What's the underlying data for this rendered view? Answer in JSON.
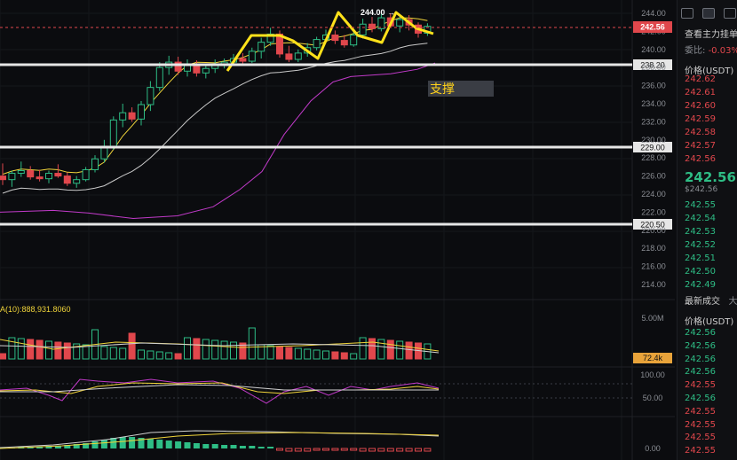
{
  "price_axis": {
    "ticks": [
      "244.00",
      "242.00",
      "240.00",
      "238.00",
      "236.00",
      "234.00",
      "232.00",
      "230.00",
      "228.00",
      "226.00",
      "224.00",
      "222.00",
      "220.00",
      "218.00",
      "216.00",
      "214.00"
    ],
    "current_price_tag": "242.56",
    "levels": [
      "238.20",
      "229.00",
      "220.50"
    ]
  },
  "annotations": {
    "peak_label": "244.00 →",
    "support_label": "支撑"
  },
  "volume": {
    "ma_label": "A(10):888,931.8060",
    "axis_max": "5.00M",
    "current_tag": "72.4k"
  },
  "oscillator": {
    "ticks": [
      "100.00",
      "50.00"
    ]
  },
  "macd": {
    "ticks": [
      "0.00"
    ]
  },
  "colors": {
    "up": "#2ebd85",
    "down": "#e0474c",
    "ma_fast": "#f0d43a",
    "ma_slow": "#c9c9c9",
    "ma_purple": "#c13ac9",
    "pattern": "#ffe11a"
  },
  "panel": {
    "title": "查看主力挂单",
    "ratio_label": "委比:",
    "ratio_value": "-0.03%",
    "price_header": "价格(USDT)",
    "asks": [
      "242.62",
      "242.61",
      "242.60",
      "242.59",
      "242.58",
      "242.57",
      "242.56"
    ],
    "last_price": "242.56",
    "last_price_usd": "$242.56",
    "bids": [
      "242.55",
      "242.54",
      "242.53",
      "242.52",
      "242.51",
      "242.50",
      "242.49"
    ],
    "trades_title": "最新成交",
    "trades_tab2": "大",
    "trades_header": "价格(USDT)",
    "trades": [
      {
        "p": "242.56",
        "side": "up"
      },
      {
        "p": "242.56",
        "side": "up"
      },
      {
        "p": "242.56",
        "side": "up"
      },
      {
        "p": "242.56",
        "side": "up"
      },
      {
        "p": "242.55",
        "side": "down"
      },
      {
        "p": "242.56",
        "side": "up"
      },
      {
        "p": "242.55",
        "side": "down"
      },
      {
        "p": "242.55",
        "side": "down"
      },
      {
        "p": "242.55",
        "side": "down"
      },
      {
        "p": "242.55",
        "side": "down"
      }
    ]
  },
  "chart_data": {
    "type": "candlestick",
    "ohlc": [
      [
        226.0,
        227.4,
        225.0,
        225.6
      ],
      [
        225.6,
        226.6,
        224.8,
        226.3
      ],
      [
        226.3,
        227.6,
        225.9,
        226.6
      ],
      [
        226.6,
        227.1,
        225.6,
        225.9
      ],
      [
        225.9,
        226.7,
        225.4,
        225.7
      ],
      [
        225.7,
        226.6,
        225.2,
        226.3
      ],
      [
        226.3,
        227.3,
        225.8,
        226.0
      ],
      [
        226.0,
        226.4,
        224.9,
        225.2
      ],
      [
        225.2,
        226.0,
        224.7,
        225.6
      ],
      [
        225.6,
        227.0,
        225.4,
        226.7
      ],
      [
        226.7,
        228.3,
        226.4,
        227.9
      ],
      [
        227.9,
        230.0,
        227.5,
        229.3
      ],
      [
        229.3,
        232.6,
        228.9,
        232.2
      ],
      [
        232.2,
        234.0,
        231.4,
        233.0
      ],
      [
        233.0,
        233.6,
        232.0,
        232.3
      ],
      [
        232.3,
        234.3,
        231.6,
        233.9
      ],
      [
        233.9,
        236.5,
        233.2,
        235.8
      ],
      [
        235.8,
        238.6,
        235.4,
        238.0
      ],
      [
        238.0,
        239.3,
        237.2,
        238.6
      ],
      [
        238.6,
        239.2,
        237.2,
        237.6
      ],
      [
        237.6,
        238.9,
        237.0,
        238.3
      ],
      [
        238.3,
        238.8,
        237.0,
        237.4
      ],
      [
        237.4,
        238.2,
        236.8,
        237.9
      ],
      [
        237.9,
        238.9,
        237.4,
        238.4
      ],
      [
        238.4,
        239.0,
        237.9,
        238.6
      ],
      [
        238.6,
        239.5,
        238.2,
        239.0
      ],
      [
        239.0,
        239.6,
        238.3,
        238.7
      ],
      [
        238.7,
        240.2,
        238.5,
        239.8
      ],
      [
        239.8,
        241.3,
        239.0,
        240.8
      ],
      [
        240.8,
        242.4,
        240.4,
        241.7
      ],
      [
        241.7,
        242.1,
        239.1,
        239.5
      ],
      [
        239.5,
        240.4,
        238.6,
        238.9
      ],
      [
        238.9,
        240.0,
        238.6,
        239.6
      ],
      [
        239.6,
        240.7,
        239.2,
        240.2
      ],
      [
        240.2,
        241.4,
        239.9,
        241.1
      ],
      [
        241.1,
        242.2,
        240.7,
        241.6
      ],
      [
        241.6,
        242.1,
        240.6,
        241.0
      ],
      [
        241.0,
        241.6,
        240.2,
        240.5
      ],
      [
        240.5,
        241.9,
        240.3,
        241.6
      ],
      [
        241.6,
        243.4,
        241.2,
        242.8
      ],
      [
        242.8,
        243.6,
        241.9,
        242.3
      ],
      [
        242.3,
        244.0,
        242.0,
        243.5
      ],
      [
        243.5,
        244.0,
        242.4,
        242.6
      ],
      [
        242.6,
        243.9,
        241.9,
        243.3
      ],
      [
        243.3,
        243.8,
        242.1,
        242.7
      ],
      [
        242.7,
        243.0,
        241.3,
        241.8
      ],
      [
        241.8,
        242.9,
        241.5,
        242.56
      ]
    ]
  }
}
